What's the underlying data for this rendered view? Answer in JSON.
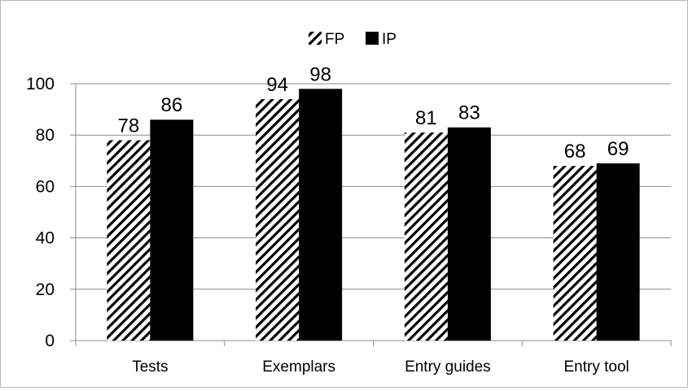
{
  "chart_data": {
    "type": "bar",
    "categories": [
      "Tests",
      "Exemplars",
      "Entry guides",
      "Entry tool"
    ],
    "series": [
      {
        "name": "FP",
        "values": [
          78,
          94,
          81,
          68
        ],
        "pattern": "diagonal-hatch"
      },
      {
        "name": "IP",
        "values": [
          86,
          98,
          83,
          69
        ],
        "color": "#000000"
      }
    ],
    "title": "",
    "xlabel": "",
    "ylabel": "",
    "ylim": [
      0,
      100
    ],
    "yticks": [
      0,
      20,
      40,
      60,
      80,
      100
    ],
    "grid": true,
    "legend": "top-center",
    "data_labels": true
  }
}
